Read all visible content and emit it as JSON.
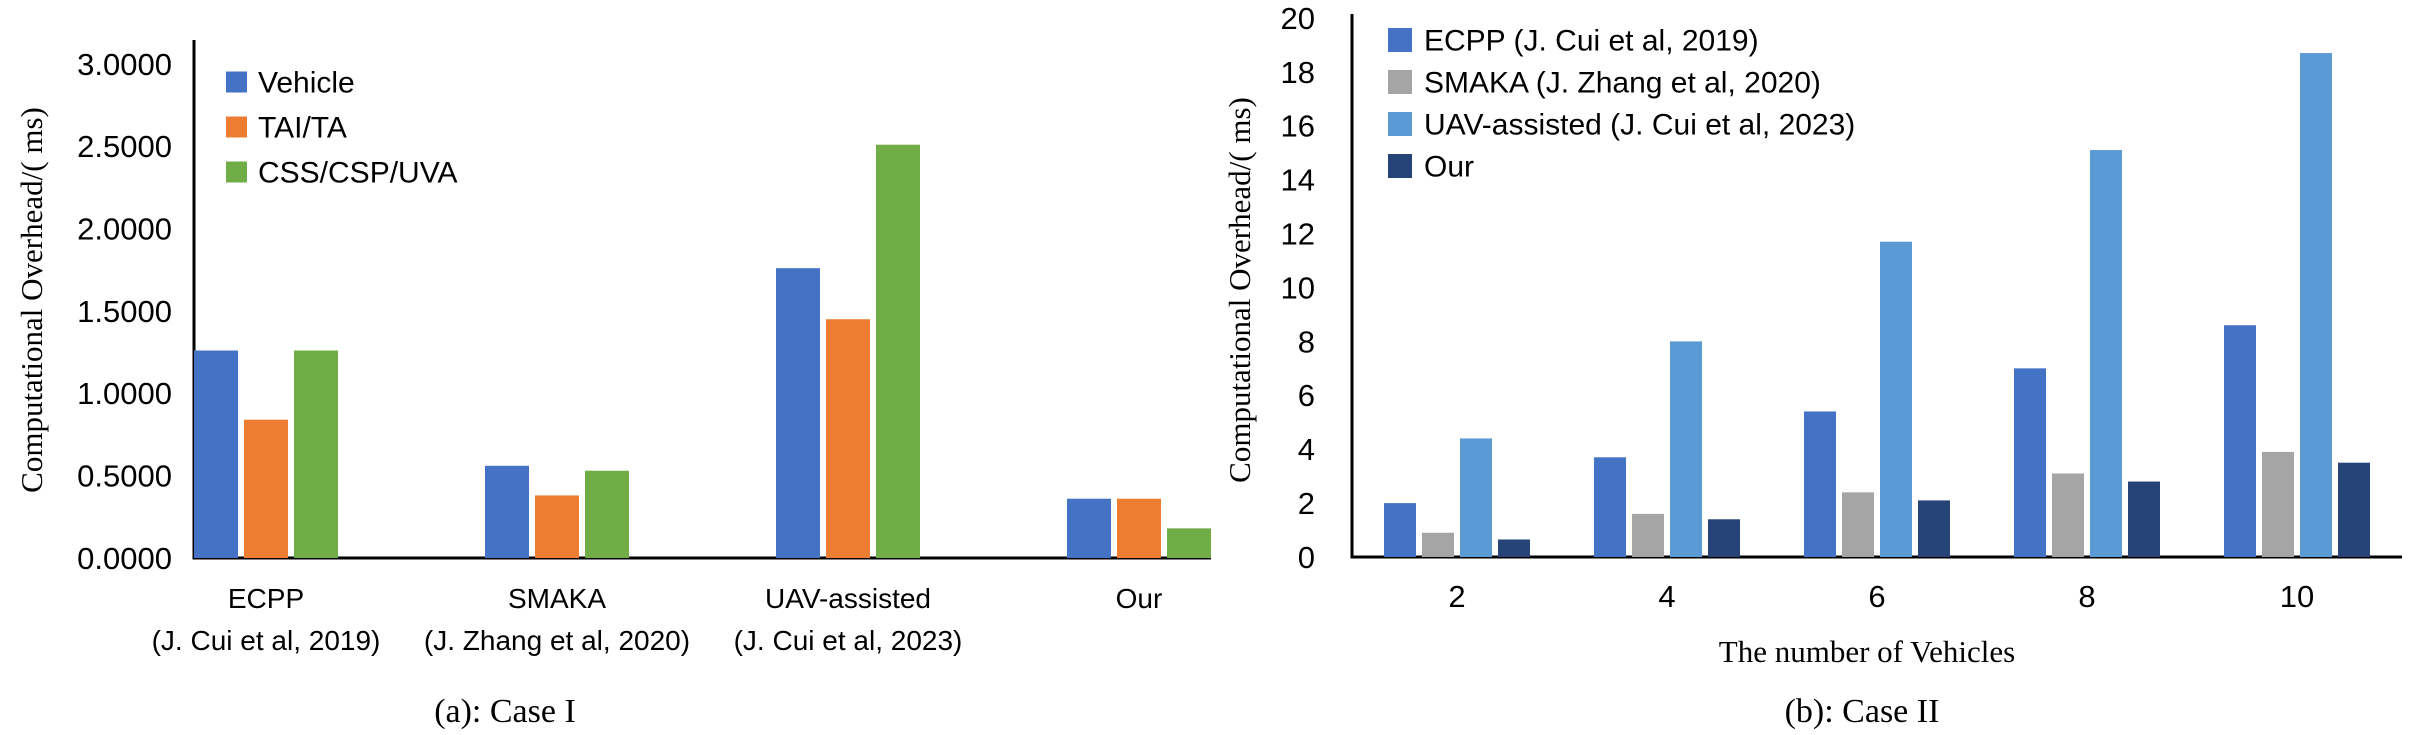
{
  "figure": {
    "background": "#ffffff",
    "text_color": "#000000",
    "axis_color": "#000000"
  },
  "chart_data": [
    {
      "type": "bar",
      "caption": "(a): Case I",
      "ylabel": "Computational Overhead/( ms)",
      "xlabel": "",
      "ylim": [
        0,
        3.0
      ],
      "ytick_step": 0.5,
      "ytick_decimals": 4,
      "grid": false,
      "legend_position": "top-left-inside",
      "categories": [
        [
          "ECPP",
          "(J. Cui et al, 2019)"
        ],
        [
          "SMAKA",
          "(J. Zhang et al, 2020)"
        ],
        [
          "UAV-assisted",
          "(J. Cui et al, 2023)"
        ],
        [
          "Our",
          ""
        ]
      ],
      "series": [
        {
          "name": "Vehicle",
          "color": "#4472C4",
          "values": [
            1.26,
            0.56,
            1.76,
            0.36
          ]
        },
        {
          "name": "TAI/TA",
          "color": "#ED7D31",
          "values": [
            0.84,
            0.38,
            1.45,
            0.36
          ]
        },
        {
          "name": "CSS/CSP/UVA",
          "color": "#70AD47",
          "values": [
            1.26,
            0.53,
            2.51,
            0.18
          ]
        }
      ]
    },
    {
      "type": "bar",
      "caption": "(b): Case II",
      "ylabel": "Computational Overhead/( ms)",
      "xlabel": "The number of Vehicles",
      "ylim": [
        0,
        20
      ],
      "ytick_step": 2,
      "ytick_decimals": 0,
      "grid": false,
      "legend_position": "top-left-inside",
      "categories": [
        [
          "2"
        ],
        [
          "4"
        ],
        [
          "6"
        ],
        [
          "8"
        ],
        [
          "10"
        ]
      ],
      "series": [
        {
          "name": "ECPP (J. Cui et al, 2019)",
          "color": "#4472C4",
          "values": [
            2.0,
            3.7,
            5.4,
            7.0,
            8.6
          ]
        },
        {
          "name": "SMAKA (J. Zhang et al, 2020)",
          "color": "#A5A5A5",
          "values": [
            0.9,
            1.6,
            2.4,
            3.1,
            3.9
          ]
        },
        {
          "name": "UAV-assisted (J. Cui et al, 2023)",
          "color": "#5B9BD5",
          "values": [
            4.4,
            8.0,
            11.7,
            15.1,
            18.7
          ]
        },
        {
          "name": "Our",
          "color": "#264478",
          "values": [
            0.65,
            1.4,
            2.1,
            2.8,
            3.5
          ]
        }
      ]
    }
  ]
}
